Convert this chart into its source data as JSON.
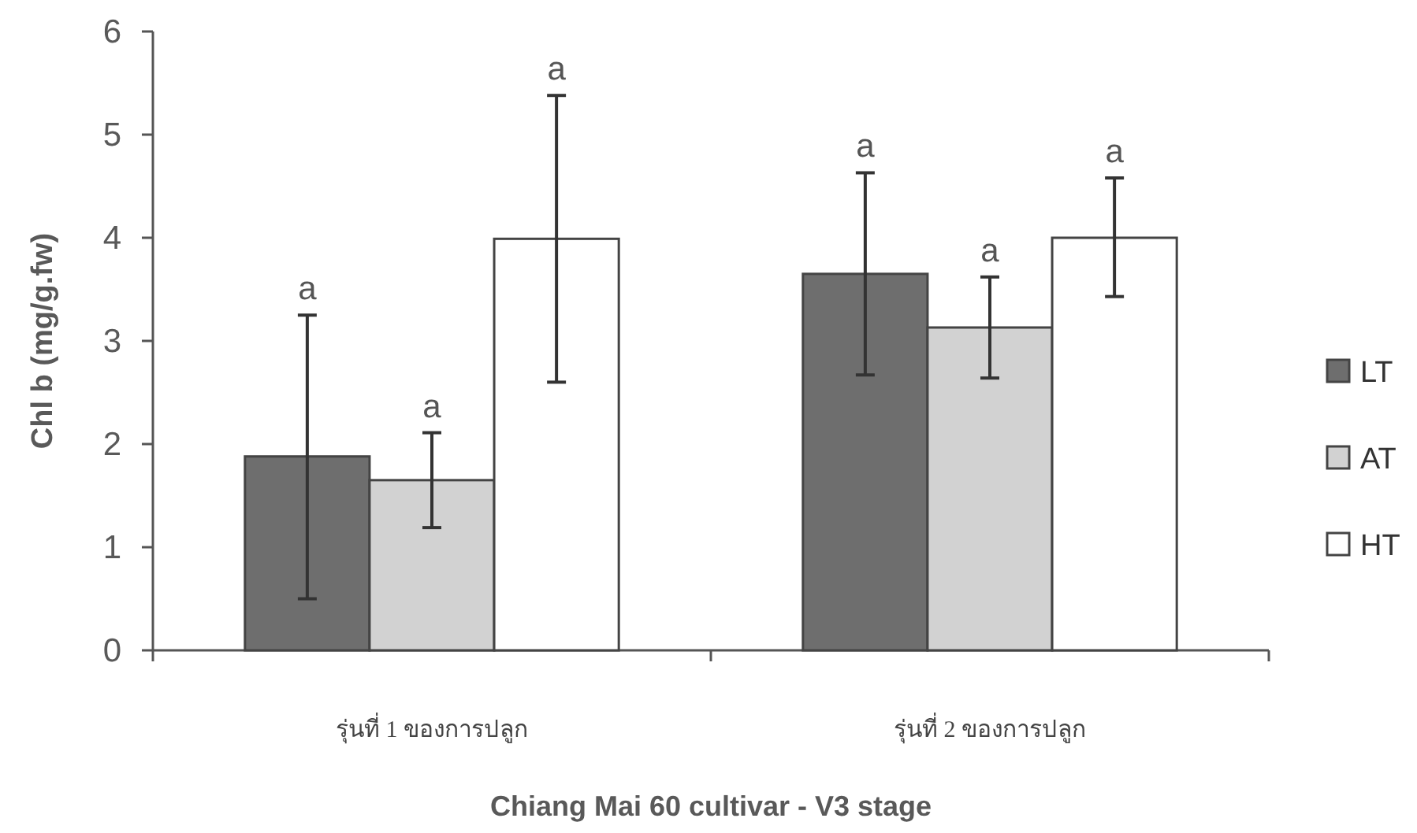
{
  "chart_data": {
    "type": "bar",
    "xlabel": "Chiang Mai 60 cultivar - V3 stage",
    "ylabel": "Chl b (mg/g.fw)",
    "categories": [
      "รุ่นที่ 1 ของการปลูก",
      "รุ่นที่ 2 ของการปลูก"
    ],
    "series": [
      {
        "name": "LT",
        "color": "#6e6e6e",
        "values": [
          1.88,
          3.65
        ],
        "errors": [
          [
            0.5,
            3.25
          ],
          [
            2.67,
            4.63
          ]
        ]
      },
      {
        "name": "AT",
        "color": "#d2d2d2",
        "values": [
          1.65,
          3.13
        ],
        "errors": [
          [
            1.19,
            2.11
          ],
          [
            2.64,
            3.62
          ]
        ]
      },
      {
        "name": "HT",
        "color": "#ffffff",
        "values": [
          3.99,
          4.0
        ],
        "errors": [
          [
            2.6,
            5.38
          ],
          [
            3.43,
            4.58
          ]
        ]
      }
    ],
    "annotations": [
      "a",
      "a",
      "a",
      "a",
      "a",
      "a"
    ],
    "ylim": [
      0,
      6
    ],
    "yticks": [
      0,
      1,
      2,
      3,
      4,
      5,
      6
    ],
    "legend": "right"
  }
}
